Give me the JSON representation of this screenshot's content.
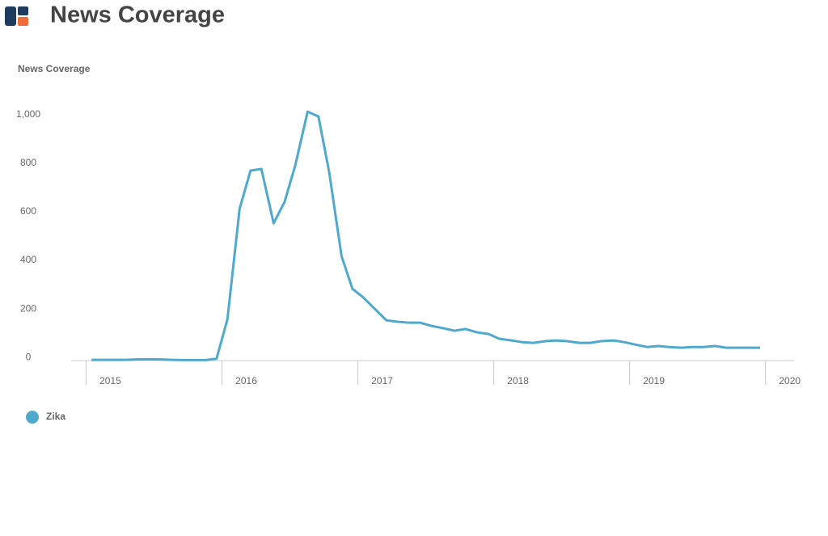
{
  "chart_data": {
    "type": "line",
    "title": "News Coverage",
    "ylabel": "News Coverage",
    "x": [
      2015.04,
      2015.13,
      2015.21,
      2015.29,
      2015.38,
      2015.46,
      2015.54,
      2015.63,
      2015.71,
      2015.79,
      2015.88,
      2015.96,
      2016.04,
      2016.13,
      2016.21,
      2016.29,
      2016.38,
      2016.46,
      2016.54,
      2016.63,
      2016.71,
      2016.79,
      2016.88,
      2016.96,
      2017.04,
      2017.13,
      2017.21,
      2017.29,
      2017.38,
      2017.46,
      2017.54,
      2017.63,
      2017.71,
      2017.79,
      2017.88,
      2017.96,
      2018.04,
      2018.13,
      2018.21,
      2018.29,
      2018.38,
      2018.46,
      2018.54,
      2018.63,
      2018.71,
      2018.79,
      2018.88,
      2018.96,
      2019.04,
      2019.13,
      2019.21,
      2019.29,
      2019.38,
      2019.46,
      2019.54,
      2019.63,
      2019.71,
      2019.79,
      2019.88,
      2019.96
    ],
    "series": [
      {
        "name": "Zika",
        "color": "#4ea9cc",
        "values": [
          -10,
          -10,
          -10,
          -10,
          -8,
          -8,
          -8,
          -10,
          -11,
          -11,
          -11,
          -5,
          157,
          613,
          770,
          777,
          553,
          640,
          793,
          1013,
          993,
          760,
          417,
          283,
          247,
          197,
          153,
          147,
          143,
          143,
          130,
          120,
          110,
          117,
          103,
          97,
          77,
          70,
          63,
          60,
          67,
          70,
          67,
          60,
          60,
          67,
          70,
          63,
          53,
          43,
          47,
          43,
          40,
          43,
          43,
          47,
          40,
          40,
          40,
          40
        ]
      }
    ],
    "xlim": [
      2014.89,
      2020.21
    ],
    "ylim": [
      -13,
      1040
    ],
    "xticks": [
      2015,
      2016,
      2017,
      2018,
      2019,
      2020
    ],
    "yticks": [
      0,
      200,
      400,
      600,
      800,
      {
        "value": 1000,
        "label": "1,000"
      }
    ]
  }
}
